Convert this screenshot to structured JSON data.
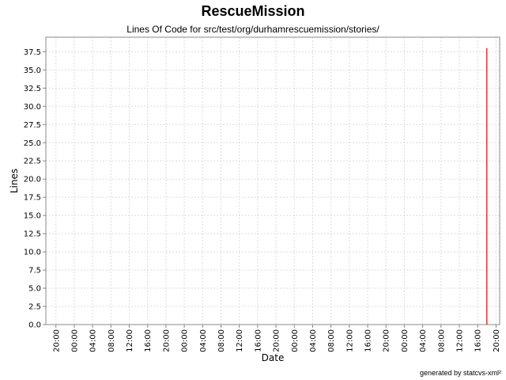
{
  "title": "RescueMission",
  "subtitle": "Lines Of Code for src/test/org/durhamrescuemission/stories/",
  "footer": "generated by statcvs-xml²",
  "colors": {
    "series": "#e00000",
    "grid": "#dddddd",
    "axis": "#888888"
  },
  "chart_data": {
    "type": "line",
    "title": "RescueMission",
    "subtitle": "Lines Of Code for src/test/org/durhamrescuemission/stories/",
    "xlabel": "Date",
    "ylabel": "Lines",
    "ylim": [
      0,
      39.5
    ],
    "grid": true,
    "y_ticks": [
      0.0,
      2.5,
      5.0,
      7.5,
      10.0,
      12.5,
      15.0,
      17.5,
      20.0,
      22.5,
      25.0,
      27.5,
      30.0,
      32.5,
      35.0,
      37.5
    ],
    "x_ticks": [
      "20:00",
      "00:00",
      "04:00",
      "08:00",
      "12:00",
      "16:00",
      "20:00",
      "00:00",
      "04:00",
      "08:00",
      "12:00",
      "16:00",
      "20:00",
      "00:00",
      "04:00",
      "08:00",
      "12:00",
      "16:00",
      "20:00",
      "00:00",
      "04:00",
      "08:00",
      "12:00",
      "16:00",
      "20:00"
    ],
    "x_index_range": [
      -0.55,
      24.2
    ],
    "series": [
      {
        "values_x_index": [
          23.5,
          23.5
        ],
        "values": [
          0,
          38
        ]
      }
    ]
  }
}
